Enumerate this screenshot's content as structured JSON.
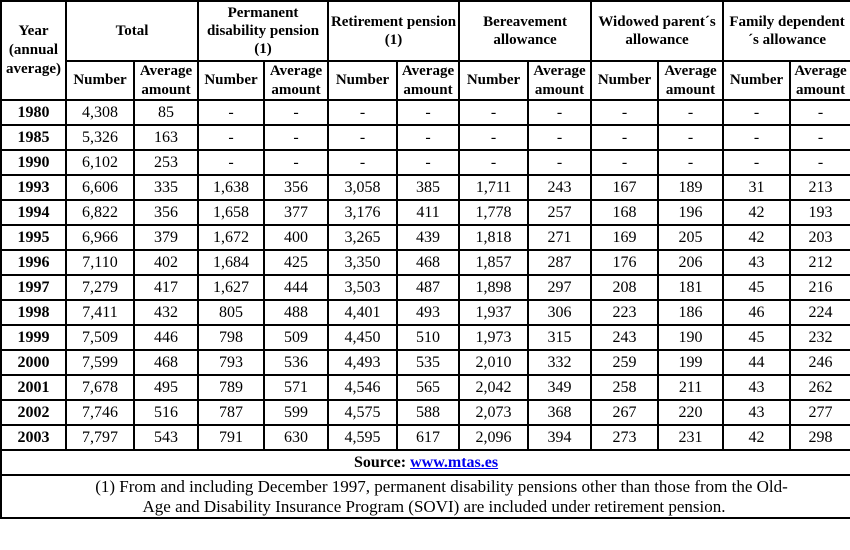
{
  "colors": {
    "text": "#000000",
    "border": "#000000",
    "link_blue": "#0000EE",
    "background": "#ffffff"
  },
  "table": {
    "corner_header": "Year (annual average)",
    "groups": [
      {
        "label": "Total"
      },
      {
        "label": "Permanent disability pension (1)"
      },
      {
        "label": "Retirement pension (1)"
      },
      {
        "label": "Bereavement allowance"
      },
      {
        "label": "Widowed parent´s allowance"
      },
      {
        "label": "Family dependent´s allowance"
      }
    ],
    "subheaders": {
      "number": "Number",
      "average": "Average amount"
    },
    "rows": [
      {
        "year": "1980",
        "values": [
          "4,308",
          "85",
          "-",
          "-",
          "-",
          "-",
          "-",
          "-",
          "-",
          "-",
          "-",
          "-"
        ]
      },
      {
        "year": "1985",
        "values": [
          "5,326",
          "163",
          "-",
          "-",
          "-",
          "-",
          "-",
          "-",
          "-",
          "-",
          "-",
          "-"
        ]
      },
      {
        "year": "1990",
        "values": [
          "6,102",
          "253",
          "-",
          "-",
          "-",
          "-",
          "-",
          "-",
          "-",
          "-",
          "-",
          "-"
        ]
      },
      {
        "year": "1993",
        "values": [
          "6,606",
          "335",
          "1,638",
          "356",
          "3,058",
          "385",
          "1,711",
          "243",
          "167",
          "189",
          "31",
          "213"
        ]
      },
      {
        "year": "1994",
        "values": [
          "6,822",
          "356",
          "1,658",
          "377",
          "3,176",
          "411",
          "1,778",
          "257",
          "168",
          "196",
          "42",
          "193"
        ]
      },
      {
        "year": "1995",
        "values": [
          "6,966",
          "379",
          "1,672",
          "400",
          "3,265",
          "439",
          "1,818",
          "271",
          "169",
          "205",
          "42",
          "203"
        ]
      },
      {
        "year": "1996",
        "values": [
          "7,110",
          "402",
          "1,684",
          "425",
          "3,350",
          "468",
          "1,857",
          "287",
          "176",
          "206",
          "43",
          "212"
        ]
      },
      {
        "year": "1997",
        "values": [
          "7,279",
          "417",
          "1,627",
          "444",
          "3,503",
          "487",
          "1,898",
          "297",
          "208",
          "181",
          "45",
          "216"
        ]
      },
      {
        "year": "1998",
        "values": [
          "7,411",
          "432",
          "805",
          "488",
          "4,401",
          "493",
          "1,937",
          "306",
          "223",
          "186",
          "46",
          "224"
        ]
      },
      {
        "year": "1999",
        "values": [
          "7,509",
          "446",
          "798",
          "509",
          "4,450",
          "510",
          "1,973",
          "315",
          "243",
          "190",
          "45",
          "232"
        ]
      },
      {
        "year": "2000",
        "values": [
          "7,599",
          "468",
          "793",
          "536",
          "4,493",
          "535",
          "2,010",
          "332",
          "259",
          "199",
          "44",
          "246"
        ]
      },
      {
        "year": "2001",
        "values": [
          "7,678",
          "495",
          "789",
          "571",
          "4,546",
          "565",
          "2,042",
          "349",
          "258",
          "211",
          "43",
          "262"
        ]
      },
      {
        "year": "2002",
        "values": [
          "7,746",
          "516",
          "787",
          "599",
          "4,575",
          "588",
          "2,073",
          "368",
          "267",
          "220",
          "43",
          "277"
        ]
      },
      {
        "year": "2003",
        "values": [
          "7,797",
          "543",
          "791",
          "630",
          "4,595",
          "617",
          "2,096",
          "394",
          "273",
          "231",
          "42",
          "298"
        ]
      }
    ]
  },
  "footer": {
    "source_label": "Source:",
    "source_link": "www.mtas.es",
    "note_line1": "(1) From and including December 1997, permanent disability pensions other than those from the Old-",
    "note_line2": "Age and Disability Insurance Program (SOVI) are included under retirement pension."
  },
  "chart_data": {
    "type": "table",
    "title": "Pensions by type, number and average amount (annual average)",
    "columns": [
      "Year (annual average)",
      "Total Number",
      "Total Average amount",
      "Permanent disability pension (1) Number",
      "Permanent disability pension (1) Average amount",
      "Retirement pension (1) Number",
      "Retirement pension (1) Average amount",
      "Bereavement allowance Number",
      "Bereavement allowance Average amount",
      "Widowed parent´s allowance Number",
      "Widowed parent´s allowance Average amount",
      "Family dependent´s allowance Number",
      "Family dependent´s allowance Average amount"
    ],
    "rows": [
      [
        "1980",
        "4,308",
        "85",
        "-",
        "-",
        "-",
        "-",
        "-",
        "-",
        "-",
        "-",
        "-",
        "-"
      ],
      [
        "1985",
        "5,326",
        "163",
        "-",
        "-",
        "-",
        "-",
        "-",
        "-",
        "-",
        "-",
        "-",
        "-"
      ],
      [
        "1990",
        "6,102",
        "253",
        "-",
        "-",
        "-",
        "-",
        "-",
        "-",
        "-",
        "-",
        "-",
        "-"
      ],
      [
        "1993",
        "6,606",
        "335",
        "1,638",
        "356",
        "3,058",
        "385",
        "1,711",
        "243",
        "167",
        "189",
        "31",
        "213"
      ],
      [
        "1994",
        "6,822",
        "356",
        "1,658",
        "377",
        "3,176",
        "411",
        "1,778",
        "257",
        "168",
        "196",
        "42",
        "193"
      ],
      [
        "1995",
        "6,966",
        "379",
        "1,672",
        "400",
        "3,265",
        "439",
        "1,818",
        "271",
        "169",
        "205",
        "42",
        "203"
      ],
      [
        "1996",
        "7,110",
        "402",
        "1,684",
        "425",
        "3,350",
        "468",
        "1,857",
        "287",
        "176",
        "206",
        "43",
        "212"
      ],
      [
        "1997",
        "7,279",
        "417",
        "1,627",
        "444",
        "3,503",
        "487",
        "1,898",
        "297",
        "208",
        "181",
        "45",
        "216"
      ],
      [
        "1998",
        "7,411",
        "432",
        "805",
        "488",
        "4,401",
        "493",
        "1,937",
        "306",
        "223",
        "186",
        "46",
        "224"
      ],
      [
        "1999",
        "7,509",
        "446",
        "798",
        "509",
        "4,450",
        "510",
        "1,973",
        "315",
        "243",
        "190",
        "45",
        "232"
      ],
      [
        "2000",
        "7,599",
        "468",
        "793",
        "536",
        "4,493",
        "535",
        "2,010",
        "332",
        "259",
        "199",
        "44",
        "246"
      ],
      [
        "2001",
        "7,678",
        "495",
        "789",
        "571",
        "4,546",
        "565",
        "2,042",
        "349",
        "258",
        "211",
        "43",
        "262"
      ],
      [
        "2002",
        "7,746",
        "516",
        "787",
        "599",
        "4,575",
        "588",
        "2,073",
        "368",
        "267",
        "220",
        "43",
        "277"
      ],
      [
        "2003",
        "7,797",
        "543",
        "791",
        "630",
        "4,595",
        "617",
        "2,096",
        "394",
        "273",
        "231",
        "42",
        "298"
      ]
    ],
    "source": "www.mtas.es",
    "footnote": "(1) From and including December 1997, permanent disability pensions other than those from the Old-Age and Disability Insurance Program (SOVI) are included under retirement pension."
  }
}
